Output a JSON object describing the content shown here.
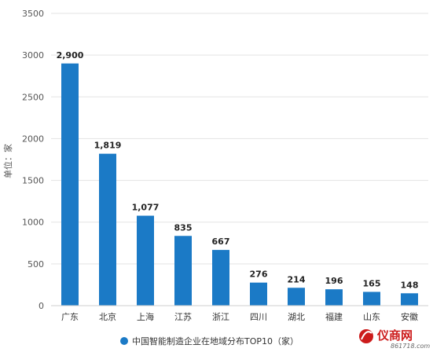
{
  "chart_data": {
    "type": "bar",
    "categories": [
      "广东",
      "北京",
      "上海",
      "江苏",
      "浙江",
      "四川",
      "湖北",
      "福建",
      "山东",
      "安徽"
    ],
    "series": [
      {
        "name": "中国智能制造企业在地域分布TOP10（家）",
        "values": [
          2900,
          1819,
          1077,
          835,
          667,
          276,
          214,
          196,
          165,
          148
        ]
      }
    ],
    "data_labels": [
      "2,900",
      "1,819",
      "1,077",
      "835",
      "667",
      "276",
      "214",
      "196",
      "165",
      "148"
    ],
    "y_ticks": [
      0,
      500,
      1000,
      1500,
      2000,
      2500,
      3000,
      3500
    ],
    "ylim": [
      0,
      3500
    ],
    "ylabel": "单位：家",
    "xlabel": "",
    "title": "",
    "grid": true,
    "legend_position": "bottom-center",
    "bar_color": "#1b7ac6"
  },
  "watermark": {
    "logo_text": "仪商网",
    "url": "861718.com",
    "logo_color": "#cc1b1b"
  }
}
